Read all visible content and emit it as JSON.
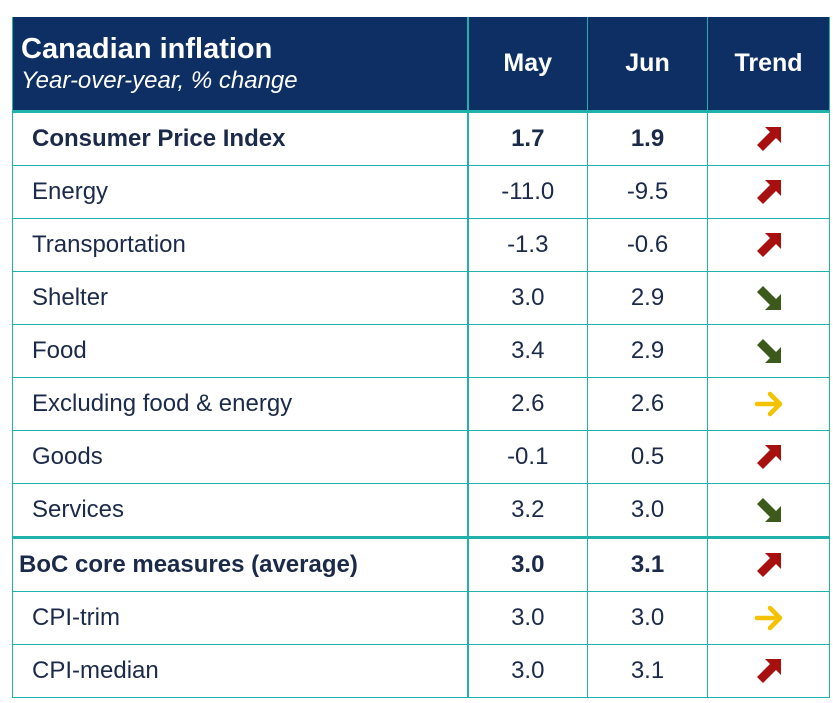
{
  "table": {
    "title": "Canadian inflation",
    "subtitle": "Year-over-year, % change",
    "columns": [
      "May",
      "Jun",
      "Trend"
    ],
    "rows": [
      {
        "label": "Consumer Price Index",
        "may": "1.7",
        "jun": "1.9",
        "trend": "up-arrow-icon",
        "bold": true,
        "indent": true
      },
      {
        "label": "Energy",
        "may": "-11.0",
        "jun": "-9.5",
        "trend": "up-arrow-icon",
        "bold": false,
        "indent": true
      },
      {
        "label": "Transportation",
        "may": "-1.3",
        "jun": "-0.6",
        "trend": "up-arrow-icon",
        "bold": false,
        "indent": true
      },
      {
        "label": "Shelter",
        "may": "3.0",
        "jun": "2.9",
        "trend": "down-arrow-icon",
        "bold": false,
        "indent": true
      },
      {
        "label": "Food",
        "may": "3.4",
        "jun": "2.9",
        "trend": "down-arrow-icon",
        "bold": false,
        "indent": true
      },
      {
        "label": "Excluding food & energy",
        "may": "2.6",
        "jun": "2.6",
        "trend": "flat-arrow-icon",
        "bold": false,
        "indent": true
      },
      {
        "label": "Goods",
        "may": "-0.1",
        "jun": "0.5",
        "trend": "up-arrow-icon",
        "bold": false,
        "indent": true
      },
      {
        "label": "Services",
        "may": "3.2",
        "jun": "3.0",
        "trend": "down-arrow-icon",
        "bold": false,
        "indent": true
      },
      {
        "label": "BoC core measures (average)",
        "may": "3.0",
        "jun": "3.1",
        "trend": "up-arrow-icon",
        "bold": true,
        "indent": false
      },
      {
        "label": "CPI-trim",
        "may": "3.0",
        "jun": "3.0",
        "trend": "flat-arrow-icon",
        "bold": false,
        "indent": true
      },
      {
        "label": "CPI-median",
        "may": "3.0",
        "jun": "3.1",
        "trend": "up-arrow-icon",
        "bold": false,
        "indent": true
      }
    ]
  },
  "colors": {
    "header_bg": "#0d2f63",
    "grid": "#20b2aa",
    "text": "#1b2a49",
    "trend_up": "#a80f0f",
    "trend_down": "#3c5a1b",
    "trend_flat": "#f5c200"
  }
}
